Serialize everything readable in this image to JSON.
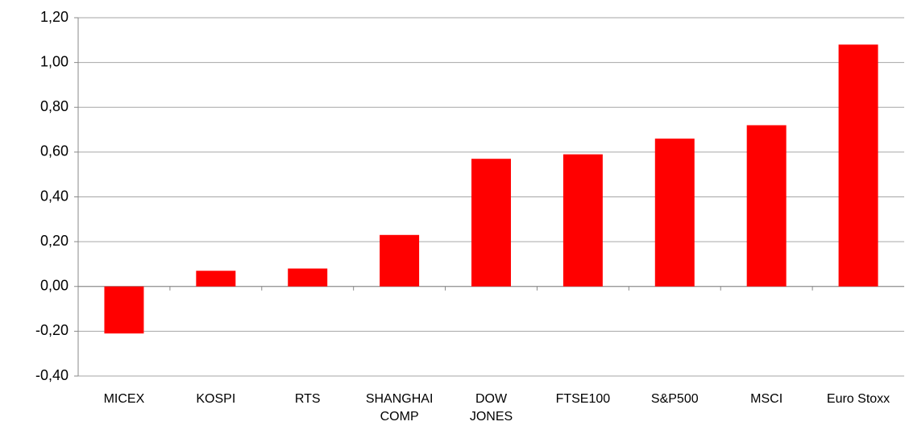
{
  "chart_data": {
    "type": "bar",
    "categories": [
      "MICEX",
      "KOSPI",
      "RTS",
      "SHANGHAI\nCOMP",
      "DOW\nJONES",
      "FTSE100",
      "S&P500",
      "MSCI",
      "Euro Stoxx"
    ],
    "values": [
      -0.21,
      0.07,
      0.08,
      0.23,
      0.57,
      0.59,
      0.66,
      0.72,
      1.08
    ],
    "color": "#ff0000",
    "ylim": [
      -0.4,
      1.2
    ],
    "yticks": [
      {
        "value": -0.4,
        "label": "-0,40"
      },
      {
        "value": -0.2,
        "label": "-0,20"
      },
      {
        "value": 0,
        "label": "0,00"
      },
      {
        "value": 0.2,
        "label": "0,20"
      },
      {
        "value": 0.4,
        "label": "0,40"
      },
      {
        "value": 0.6,
        "label": "0,60"
      },
      {
        "value": 0.8,
        "label": "0,80"
      },
      {
        "value": 1.0,
        "label": "1,00"
      },
      {
        "value": 1.2,
        "label": "1,20"
      }
    ],
    "grid": true
  }
}
